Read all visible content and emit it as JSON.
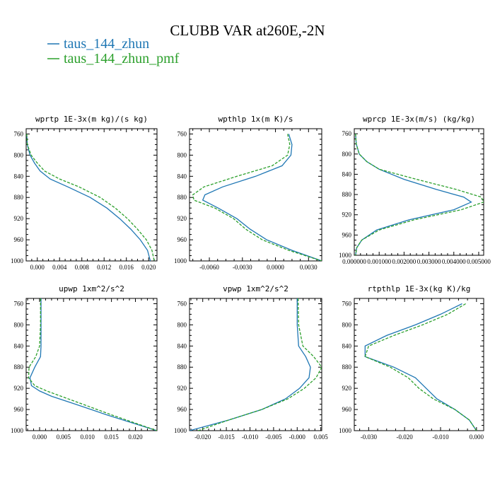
{
  "figure": {
    "title": "CLUBB VAR at260E,-2N",
    "legend": [
      {
        "name": "taus_144_zhun",
        "color": "#1f77b4",
        "dash": "solid"
      },
      {
        "name": "taus_144_zhun_pmf",
        "color": "#2ca02c",
        "dash": "dashed"
      }
    ]
  },
  "chart_data": [
    {
      "type": "line",
      "title": "wprtp  1E-3x(m kg)/(s kg)",
      "xlim": [
        -0.002,
        0.0215
      ],
      "ylim": [
        1000,
        750
      ],
      "xticks": [
        0.0,
        0.004,
        0.008,
        0.012,
        0.016,
        0.02
      ],
      "xtick_labels": [
        "0.000",
        "0.004",
        "0.008",
        "0.012",
        "0.016",
        "0.020"
      ],
      "yticks": [
        760,
        800,
        840,
        880,
        920,
        960,
        1000
      ],
      "y": [
        760,
        780,
        800,
        815,
        830,
        845,
        860,
        880,
        900,
        920,
        940,
        960,
        980,
        1000
      ],
      "series": [
        {
          "name": "taus_144_zhun",
          "color": "#1f77b4",
          "dash": "solid",
          "x": [
            -0.0019,
            -0.0018,
            -0.0013,
            -0.0005,
            0.0005,
            0.0023,
            0.0055,
            0.0095,
            0.0125,
            0.0148,
            0.0168,
            0.0185,
            0.0198,
            0.0203
          ]
        },
        {
          "name": "taus_144_zhun_pmf",
          "color": "#2ca02c",
          "dash": "dashed",
          "x": [
            -0.0019,
            -0.0018,
            -0.0011,
            0.0,
            0.0013,
            0.004,
            0.0075,
            0.0113,
            0.014,
            0.0162,
            0.018,
            0.0196,
            0.0206,
            0.021
          ]
        }
      ]
    },
    {
      "type": "line",
      "title": "wpthlp  1x(m K)/s",
      "xlim": [
        -0.0078,
        0.0042
      ],
      "ylim": [
        1000,
        750
      ],
      "xticks": [
        -0.006,
        -0.003,
        0.0,
        0.003
      ],
      "xtick_labels": [
        "-0.0060",
        "-0.0030",
        "0.0000",
        "0.0030"
      ],
      "yticks": [
        760,
        800,
        840,
        880,
        920,
        960,
        1000
      ],
      "y": [
        760,
        780,
        800,
        820,
        840,
        860,
        875,
        885,
        900,
        920,
        940,
        960,
        980,
        1000
      ],
      "series": [
        {
          "name": "taus_144_zhun",
          "color": "#1f77b4",
          "dash": "solid",
          "x": [
            0.0012,
            0.0015,
            0.0014,
            0.0006,
            -0.0018,
            -0.0048,
            -0.0064,
            -0.0066,
            -0.0052,
            -0.0035,
            -0.0023,
            -0.0008,
            0.0015,
            0.0042
          ]
        },
        {
          "name": "taus_144_zhun_pmf",
          "color": "#2ca02c",
          "dash": "dashed",
          "x": [
            0.0011,
            0.0013,
            0.0011,
            -0.0003,
            -0.0035,
            -0.0065,
            -0.0075,
            -0.0074,
            -0.0055,
            -0.0038,
            -0.0027,
            -0.0012,
            0.0012,
            0.0042
          ]
        }
      ]
    },
    {
      "type": "line",
      "title": "wprcp  1E-3x(m/s) (kg/kg)",
      "xlim": [
        0.0,
        0.0052
      ],
      "ylim": [
        1000,
        750
      ],
      "xticks": [
        0.0,
        0.001,
        0.002,
        0.003,
        0.004,
        0.005
      ],
      "xtick_labels": [
        "0.000000",
        "0.001000",
        "0.002000",
        "0.003000",
        "0.004000",
        "0.005000"
      ],
      "yticks": [
        760,
        800,
        840,
        880,
        920,
        960,
        1000
      ],
      "y": [
        760,
        780,
        800,
        815,
        830,
        850,
        870,
        885,
        895,
        910,
        930,
        950,
        970,
        985,
        1000
      ],
      "series": [
        {
          "name": "taus_144_zhun",
          "color": "#1f77b4",
          "dash": "solid",
          "x": [
            5e-05,
            8e-05,
            0.0002,
            0.0005,
            0.001,
            0.002,
            0.0033,
            0.0044,
            0.0047,
            0.004,
            0.0022,
            0.0009,
            0.0003,
            0.0001,
            5e-05
          ]
        },
        {
          "name": "taus_144_zhun_pmf",
          "color": "#2ca02c",
          "dash": "dashed",
          "x": [
            5e-05,
            8e-05,
            0.0002,
            0.0005,
            0.001,
            0.0025,
            0.0041,
            0.0051,
            0.0052,
            0.0043,
            0.0024,
            0.001,
            0.0003,
            0.0001,
            5e-05
          ]
        }
      ]
    },
    {
      "type": "line",
      "title": "upwp  1xm^2/s^2",
      "xlim": [
        -0.0028,
        0.0245
      ],
      "ylim": [
        1000,
        750
      ],
      "xticks": [
        0.0,
        0.005,
        0.01,
        0.015,
        0.02
      ],
      "xtick_labels": [
        "0.000",
        "0.005",
        "0.010",
        "0.015",
        "0.020"
      ],
      "yticks": [
        760,
        800,
        840,
        880,
        920,
        960,
        1000
      ],
      "y": [
        750,
        800,
        840,
        860,
        880,
        900,
        915,
        925,
        935,
        950,
        970,
        1000
      ],
      "series": [
        {
          "name": "taus_144_zhun",
          "color": "#1f77b4",
          "dash": "solid",
          "x": [
            0.0003,
            0.0003,
            0.0003,
            0.0002,
            -0.001,
            -0.002,
            -0.0017,
            0.0,
            0.0025,
            0.0075,
            0.014,
            0.0245
          ]
        },
        {
          "name": "taus_144_zhun_pmf",
          "color": "#2ca02c",
          "dash": "dashed",
          "x": [
            0.0002,
            0.0002,
            0.0,
            -0.0008,
            -0.0022,
            -0.0023,
            -0.001,
            0.0015,
            0.0045,
            0.009,
            0.015,
            0.0245
          ]
        }
      ]
    },
    {
      "type": "line",
      "title": "vpwp  1xm^2/s^2",
      "xlim": [
        -0.0228,
        0.0052
      ],
      "ylim": [
        1000,
        750
      ],
      "xticks": [
        -0.02,
        -0.015,
        -0.01,
        -0.005,
        -0.0,
        0.005
      ],
      "xtick_labels": [
        "-0.020",
        "-0.015",
        "-0.010",
        "-0.005",
        "-0.000",
        "0.005"
      ],
      "yticks": [
        760,
        800,
        840,
        880,
        920,
        960,
        1000
      ],
      "y": [
        750,
        800,
        840,
        860,
        880,
        900,
        920,
        940,
        960,
        980,
        1000
      ],
      "series": [
        {
          "name": "taus_144_zhun",
          "color": "#1f77b4",
          "dash": "solid",
          "x": [
            0.0,
            0.0,
            0.0003,
            0.0018,
            0.0028,
            0.0025,
            0.0005,
            -0.0025,
            -0.0075,
            -0.0145,
            -0.0228
          ]
        },
        {
          "name": "taus_144_zhun_pmf",
          "color": "#2ca02c",
          "dash": "dashed",
          "x": [
            0.0002,
            0.0003,
            0.0012,
            0.0035,
            0.0052,
            0.004,
            0.0015,
            -0.002,
            -0.0075,
            -0.0145,
            -0.021
          ]
        }
      ]
    },
    {
      "type": "line",
      "title": "rtpthlp  1E-3x(kg K)/kg",
      "xlim": [
        -0.034,
        0.002
      ],
      "ylim": [
        1000,
        750
      ],
      "xticks": [
        -0.03,
        -0.02,
        -0.01,
        0.0
      ],
      "xtick_labels": [
        "-0.030",
        "-0.020",
        "-0.010",
        "0.000"
      ],
      "yticks": [
        760,
        800,
        840,
        880,
        920,
        960,
        1000
      ],
      "y": [
        760,
        780,
        800,
        820,
        840,
        860,
        880,
        900,
        920,
        940,
        960,
        980,
        1000
      ],
      "series": [
        {
          "name": "taus_144_zhun",
          "color": "#1f77b4",
          "dash": "solid",
          "x": [
            -0.004,
            -0.01,
            -0.017,
            -0.025,
            -0.031,
            -0.031,
            -0.023,
            -0.017,
            -0.014,
            -0.011,
            -0.006,
            -0.002,
            0.0
          ]
        },
        {
          "name": "taus_144_zhun_pmf",
          "color": "#2ca02c",
          "dash": "dashed",
          "x": [
            -0.003,
            -0.008,
            -0.015,
            -0.023,
            -0.03,
            -0.031,
            -0.024,
            -0.019,
            -0.016,
            -0.012,
            -0.006,
            -0.002,
            0.0
          ]
        }
      ]
    }
  ]
}
